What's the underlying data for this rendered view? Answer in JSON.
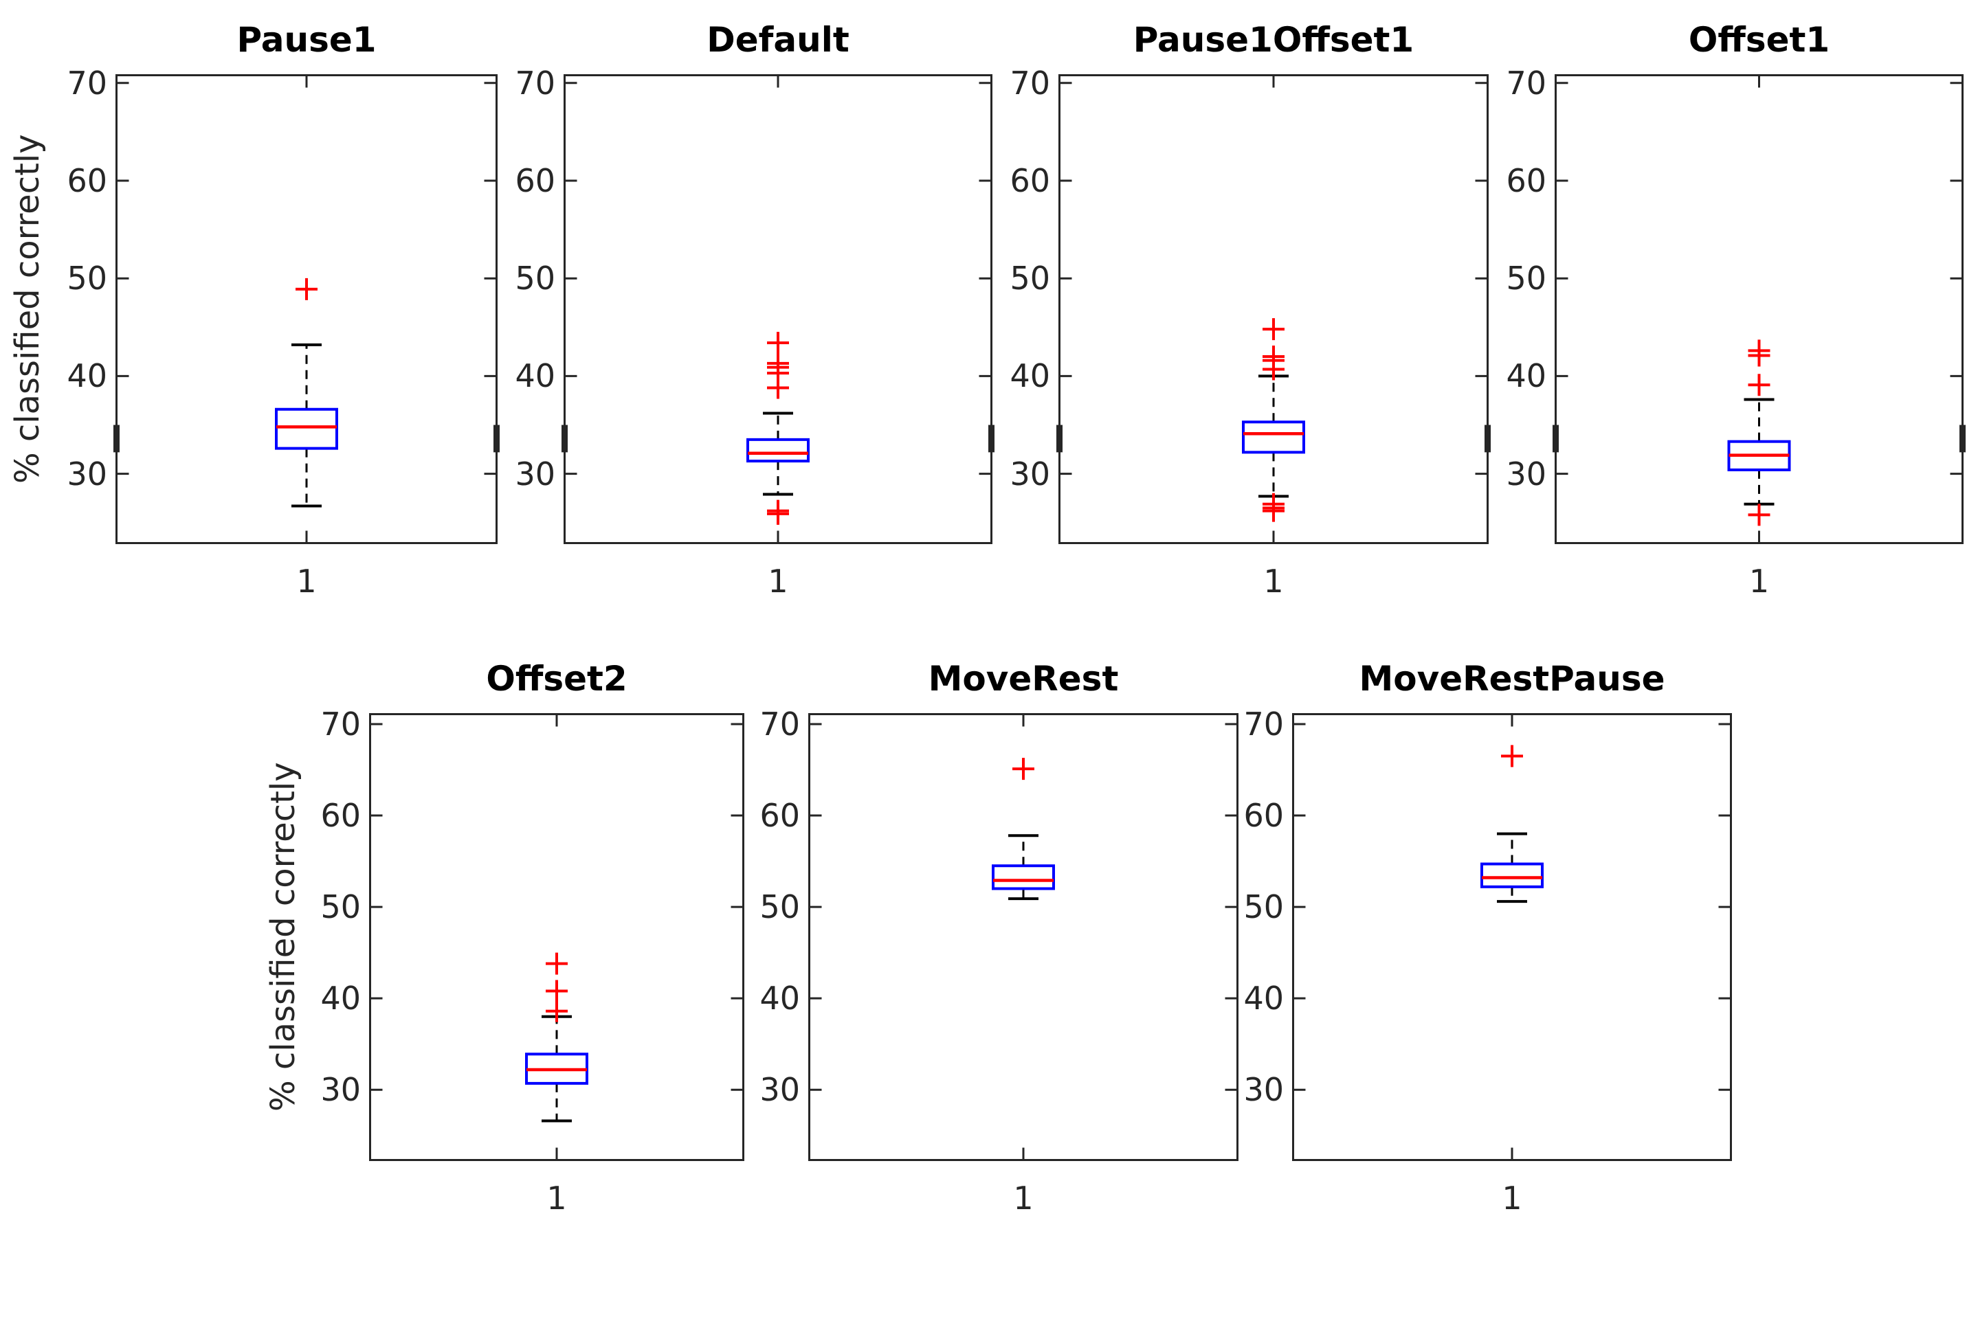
{
  "figure": {
    "ylabel": "% classified correctly",
    "colors": {
      "axis": "#262626",
      "tick_label": "#262626",
      "title": "#000000",
      "box": "#0000ff",
      "median": "#ff0000",
      "outlier": "#ff0000",
      "whisker": "#000000",
      "background": "#ffffff"
    }
  },
  "chart_data": [
    {
      "type": "box",
      "title": "Pause1",
      "row": 0,
      "xtick": "1",
      "yticks": [
        30,
        40,
        50,
        60,
        70
      ],
      "ylim": [
        22.8,
        70.9
      ],
      "grid": false,
      "stats": {
        "median": 34.8,
        "q1": 32.6,
        "q3": 36.6,
        "whisker_low": 26.7,
        "whisker_high": 43.2,
        "outliers_high": [
          48.9
        ],
        "outliers_low": []
      },
      "edge_mark": {
        "from": 32.2,
        "to": 35.0
      }
    },
    {
      "type": "box",
      "title": "Default",
      "row": 0,
      "xtick": "1",
      "yticks": [
        30,
        40,
        50,
        60,
        70
      ],
      "ylim": [
        22.8,
        70.9
      ],
      "grid": false,
      "stats": {
        "median": 32.1,
        "q1": 31.3,
        "q3": 33.5,
        "whisker_low": 27.9,
        "whisker_high": 36.2,
        "outliers_high": [
          43.4,
          41.3,
          40.9,
          40.3,
          38.8
        ],
        "outliers_low": [
          26.2,
          25.9
        ]
      },
      "edge_mark": {
        "from": 32.2,
        "to": 35.0
      }
    },
    {
      "type": "box",
      "title": "Pause1Offset1",
      "row": 0,
      "xtick": "1",
      "yticks": [
        30,
        40,
        50,
        60,
        70
      ],
      "ylim": [
        22.8,
        70.9
      ],
      "grid": false,
      "stats": {
        "median": 34.1,
        "q1": 32.2,
        "q3": 35.3,
        "whisker_low": 27.7,
        "whisker_high": 40.0,
        "outliers_high": [
          44.8,
          42.0,
          41.6,
          40.7
        ],
        "outliers_low": [
          26.9,
          26.5,
          26.2
        ]
      },
      "edge_mark": {
        "from": 32.2,
        "to": 35.0
      }
    },
    {
      "type": "box",
      "title": "Offset1",
      "row": 0,
      "xtick": "1",
      "yticks": [
        30,
        40,
        50,
        60,
        70
      ],
      "ylim": [
        22.8,
        70.9
      ],
      "grid": false,
      "stats": {
        "median": 31.9,
        "q1": 30.4,
        "q3": 33.3,
        "whisker_low": 26.9,
        "whisker_high": 37.6,
        "outliers_high": [
          42.6,
          42.1,
          39.1
        ],
        "outliers_low": [
          25.8
        ]
      },
      "edge_mark": {
        "from": 32.2,
        "to": 35.0
      }
    },
    {
      "type": "box",
      "title": "Offset2",
      "row": 1,
      "xtick": "1",
      "yticks": [
        30,
        40,
        50,
        60,
        70
      ],
      "ylim": [
        22.2,
        71.2
      ],
      "grid": false,
      "stats": {
        "median": 32.2,
        "q1": 30.7,
        "q3": 33.9,
        "whisker_low": 26.6,
        "whisker_high": 38.0,
        "outliers_high": [
          43.8,
          40.8,
          38.6
        ],
        "outliers_low": []
      }
    },
    {
      "type": "box",
      "title": "MoveRest",
      "row": 1,
      "xtick": "1",
      "yticks": [
        30,
        40,
        50,
        60,
        70
      ],
      "ylim": [
        22.2,
        71.2
      ],
      "grid": false,
      "stats": {
        "median": 52.9,
        "q1": 52.0,
        "q3": 54.5,
        "whisker_low": 50.9,
        "whisker_high": 57.8,
        "outliers_high": [
          65.1
        ],
        "outliers_low": []
      }
    },
    {
      "type": "box",
      "title": "MoveRestPause",
      "row": 1,
      "xtick": "1",
      "yticks": [
        30,
        40,
        50,
        60,
        70
      ],
      "ylim": [
        22.2,
        71.2
      ],
      "grid": false,
      "stats": {
        "median": 53.2,
        "q1": 52.2,
        "q3": 54.7,
        "whisker_low": 50.6,
        "whisker_high": 58.0,
        "outliers_high": [
          66.5
        ],
        "outliers_low": []
      }
    }
  ]
}
